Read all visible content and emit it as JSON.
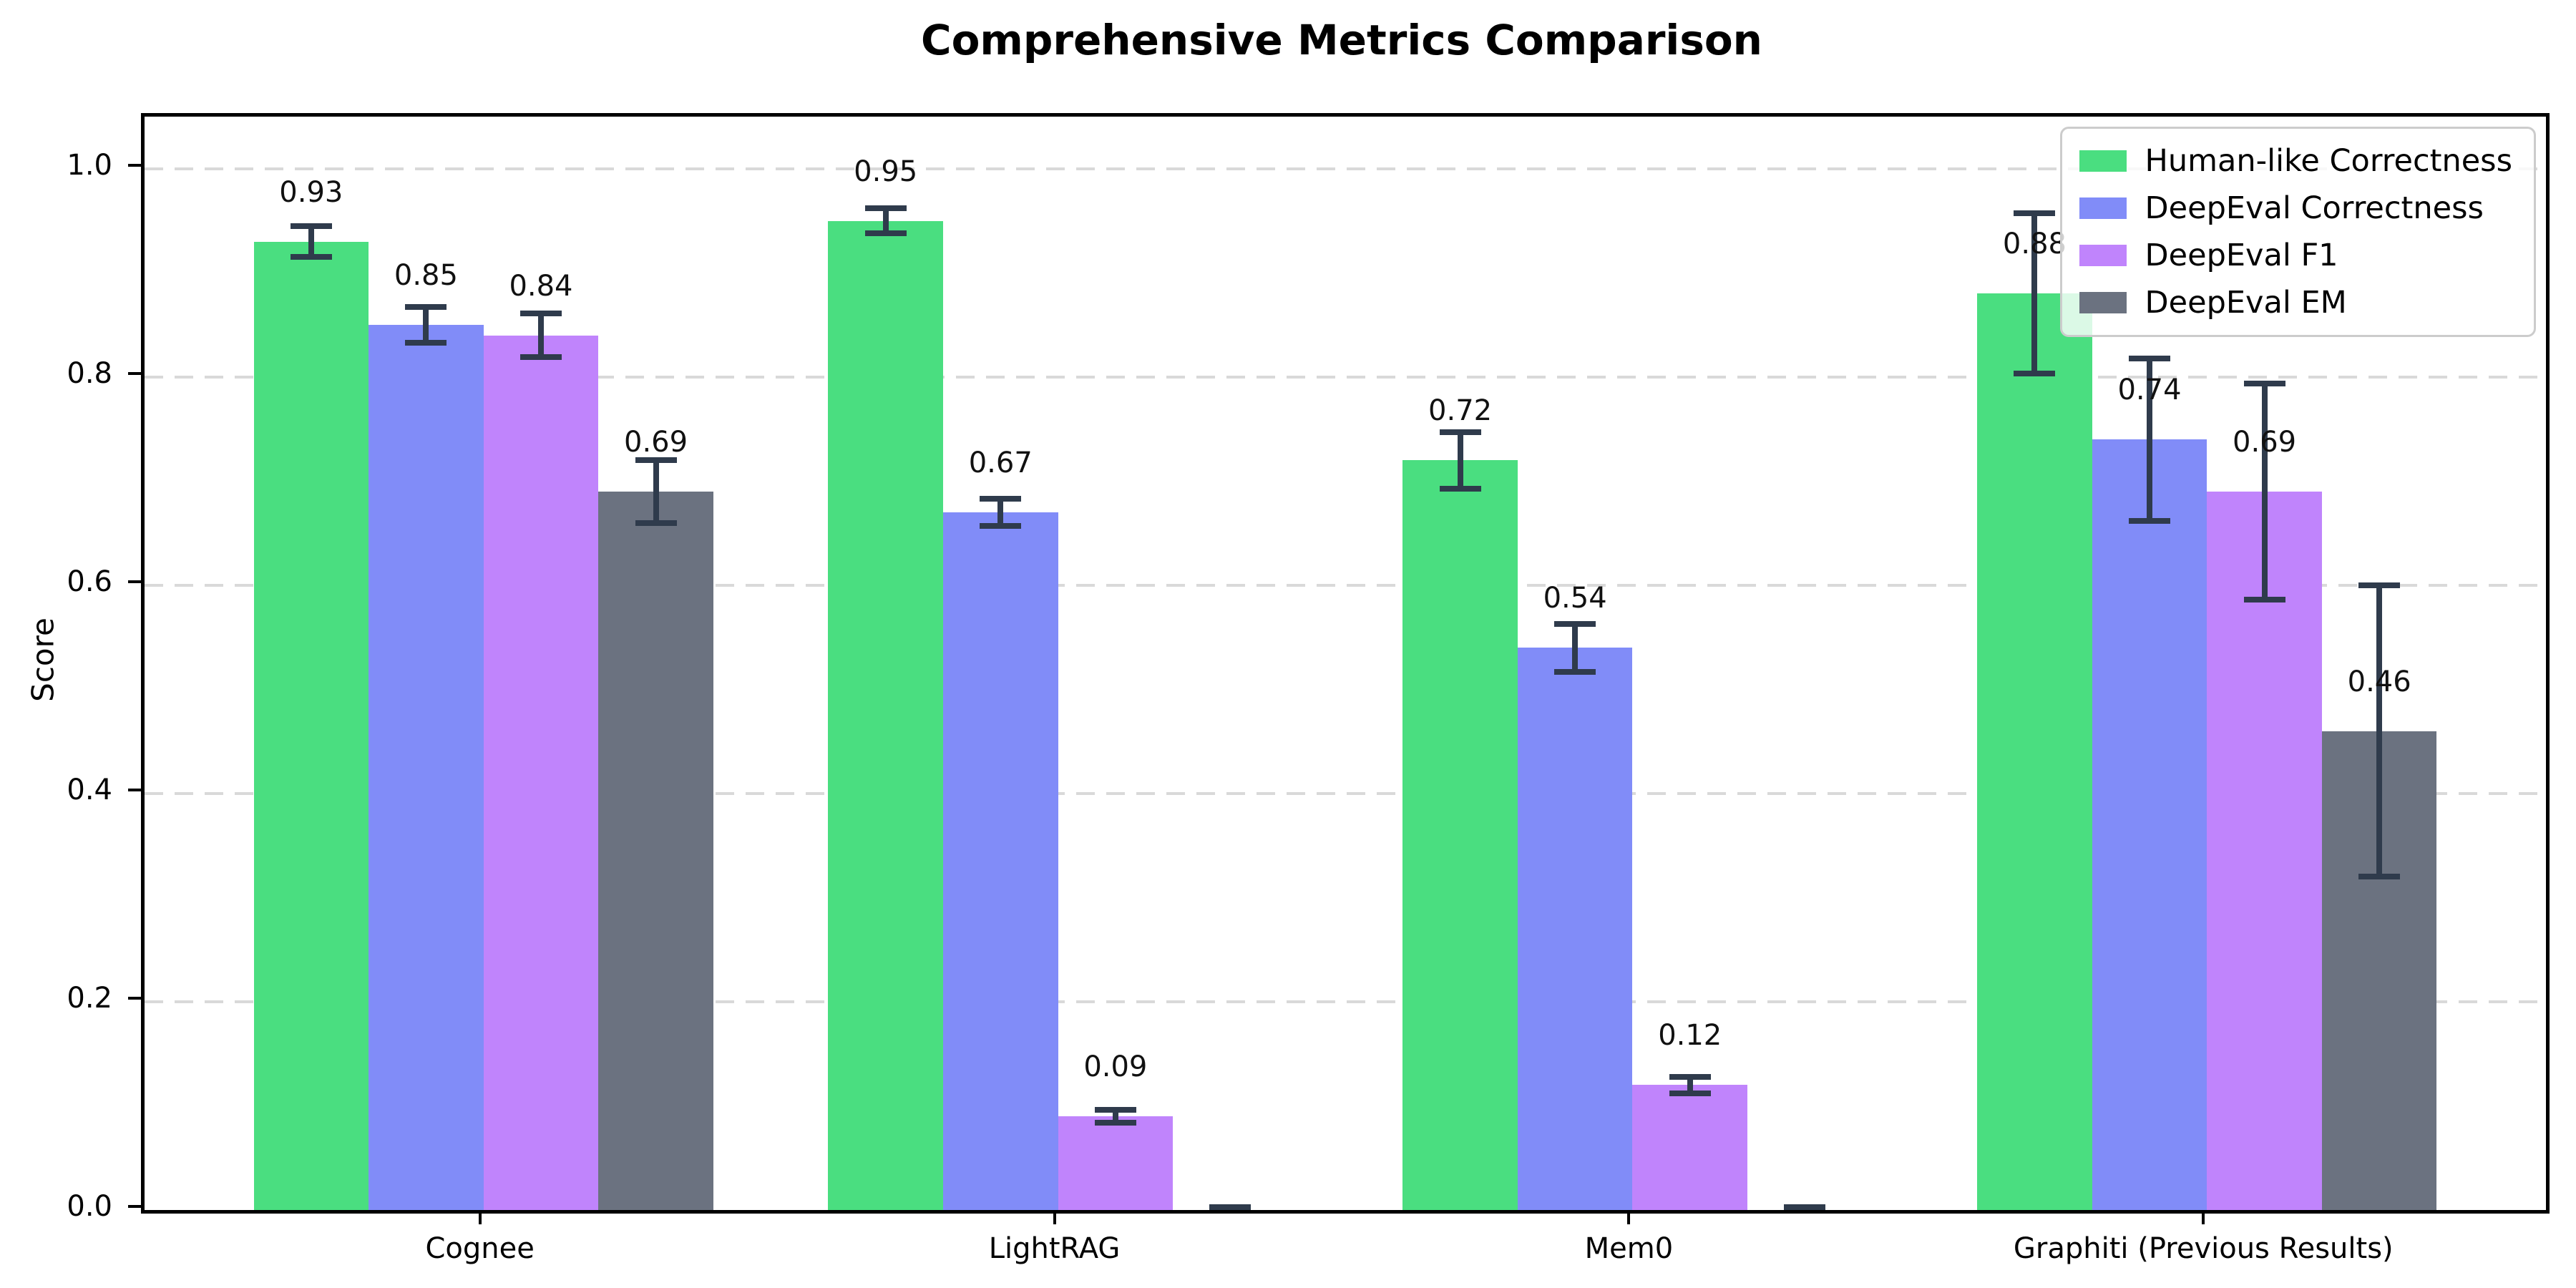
{
  "title": "Comprehensive Metrics Comparison",
  "chart_data": {
    "type": "bar",
    "title": "Comprehensive Metrics Comparison",
    "xlabel": "",
    "ylabel": "Score",
    "categories": [
      "Cognee",
      "LightRAG",
      "Mem0",
      "Graphiti (Previous Results)"
    ],
    "series": [
      {
        "name": "Human-like Correctness",
        "color": "#4ade80",
        "values": [
          0.93,
          0.95,
          0.72,
          0.88
        ],
        "errors": [
          0.015,
          0.012,
          0.027,
          0.077
        ],
        "labels": [
          "0.93",
          "0.95",
          "0.72",
          "0.88"
        ]
      },
      {
        "name": "DeepEval Correctness",
        "color": "#818cf8",
        "values": [
          0.85,
          0.67,
          0.54,
          0.74
        ],
        "errors": [
          0.017,
          0.013,
          0.023,
          0.078
        ],
        "labels": [
          "0.85",
          "0.67",
          "0.54",
          "0.74"
        ]
      },
      {
        "name": "DeepEval F1",
        "color": "#c084fc",
        "values": [
          0.84,
          0.09,
          0.12,
          0.69
        ],
        "errors": [
          0.021,
          0.006,
          0.008,
          0.104
        ],
        "labels": [
          "0.84",
          "0.09",
          "0.12",
          "0.69"
        ]
      },
      {
        "name": "DeepEval EM",
        "color": "#6b7280",
        "values": [
          0.69,
          0.0,
          0.0,
          0.46
        ],
        "errors": [
          0.03,
          0.003,
          0.003,
          0.14
        ],
        "labels": [
          "0.69",
          "",
          "",
          "0.46"
        ]
      }
    ],
    "y_ticks": [
      "0.0",
      "0.2",
      "0.4",
      "0.6",
      "0.8",
      "1.0"
    ],
    "ylim": [
      0,
      1.05
    ],
    "grid": "horizontal-dashed",
    "legend_position": "upper right",
    "error_bar_color": "#2f3b4c",
    "axis_color": "#000000",
    "grid_color": "#d9d9d9"
  }
}
